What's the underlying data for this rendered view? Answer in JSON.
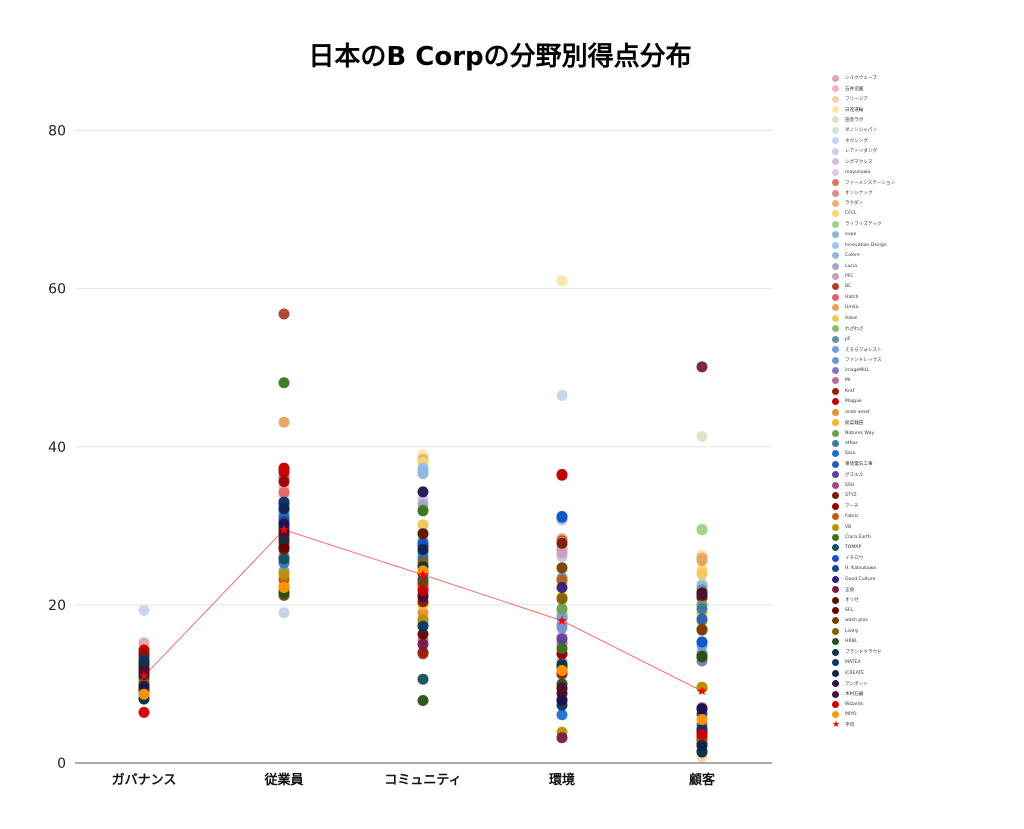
{
  "chart_data": {
    "type": "scatter",
    "title": "日本のB Corpの分野別得点分布",
    "xlabel": "",
    "ylabel": "",
    "categories": [
      "ガバナンス",
      "従業員",
      "コミュニティ",
      "環境",
      "顧客"
    ],
    "ylim": [
      0,
      85
    ],
    "yticks": [
      0,
      20,
      40,
      60,
      80
    ],
    "grid": true,
    "legend_position": "right",
    "series": [
      {
        "name": "シルクウェーブ",
        "color": "#e6a5a8",
        "values": [
          15.2,
          34.5,
          24.9,
          16.0,
          2.0
        ]
      },
      {
        "name": "石井造園",
        "color": "#f2b8b8",
        "values": [
          13.9,
          35.0,
          23.7,
          14.9,
          1.7
        ]
      },
      {
        "name": "フリージア",
        "color": "#f5d0a8",
        "values": [
          13.5,
          30.5,
          24.1,
          20.5,
          0.8
        ]
      },
      {
        "name": "日進運輸",
        "color": "#f9e6a6",
        "values": [
          12.0,
          28.7,
          39.0,
          61.0,
          26.3
        ]
      },
      {
        "name": "田舎ラボ",
        "color": "#d8e6c6",
        "values": [
          10.9,
          27.2,
          23.7,
          19.0,
          41.3
        ]
      },
      {
        "name": "ダノンジャパン",
        "color": "#c9e4d8",
        "values": [
          11.6,
          26.2,
          26.2,
          18.6,
          29.6
        ]
      },
      {
        "name": "ネクシング",
        "color": "#c6d4ee",
        "values": [
          19.3,
          30.8,
          37.1,
          46.5,
          22.7
        ]
      },
      {
        "name": "レアトリダング",
        "color": "#c6d2ea",
        "values": [
          9.8,
          19.0,
          17.6,
          30.7,
          14.3
        ]
      },
      {
        "name": "シグマクシス",
        "color": "#cdbfe0",
        "values": [
          10.9,
          36.3,
          33.3,
          26.1,
          13.6
        ]
      },
      {
        "name": "mayunowa",
        "color": "#e6c7e3",
        "values": [
          11.2,
          33.6,
          26.8,
          18.8,
          3.1
        ]
      },
      {
        "name": "ファーメンステーション",
        "color": "#d77a5e",
        "values": [
          13.9,
          21.6,
          22.4,
          20.8,
          25.9
        ]
      },
      {
        "name": "オンシナック",
        "color": "#e08c8c",
        "values": [
          14.0,
          23.3,
          21.9,
          12.8,
          21.8
        ]
      },
      {
        "name": "ラクダン",
        "color": "#efac74",
        "values": [
          12.9,
          29.6,
          38.4,
          28.4,
          25.9
        ]
      },
      {
        "name": "CFCL",
        "color": "#f6d770",
        "values": [
          12.4,
          28.9,
          38.0,
          24.5,
          24.4
        ]
      },
      {
        "name": "ライフイズテック",
        "color": "#a4cf8a",
        "values": [
          10.4,
          27.6,
          27.5,
          18.9,
          29.5
        ]
      },
      {
        "name": "evpe",
        "color": "#8fb8d8",
        "values": [
          9.5,
          30.1,
          36.6,
          30.9,
          22.4
        ]
      },
      {
        "name": "Innovation Design",
        "color": "#9ec2e8",
        "values": [
          8.9,
          31.3,
          37.3,
          28.1,
          21.7
        ]
      },
      {
        "name": "Colere",
        "color": "#8fb7e3",
        "values": [
          8.6,
          25.5,
          37.0,
          27.5,
          21.0
        ]
      },
      {
        "name": "Lucia",
        "color": "#a6a4cf",
        "values": [
          9.0,
          31.6,
          32.7,
          27.0,
          13.8
        ]
      },
      {
        "name": "PFC",
        "color": "#cf9ebd",
        "values": [
          9.4,
          36.2,
          29.1,
          26.6,
          3.4
        ]
      },
      {
        "name": "BC",
        "color": "#b0402a",
        "values": [
          13.4,
          56.8,
          13.8,
          28.1,
          16.8
        ]
      },
      {
        "name": "Hatch",
        "color": "#e06666",
        "values": [
          14.0,
          34.2,
          22.0,
          17.5,
          21.5
        ]
      },
      {
        "name": "Umila",
        "color": "#e7a45c",
        "values": [
          13.1,
          43.1,
          30.1,
          27.9,
          25.6
        ]
      },
      {
        "name": "Aakei",
        "color": "#f1c75a",
        "values": [
          11.6,
          32.2,
          30.1,
          23.1,
          23.9
        ]
      },
      {
        "name": "わざわざ",
        "color": "#8cbc6e",
        "values": [
          11.0,
          30.0,
          28.2,
          18.5,
          21.0
        ]
      },
      {
        "name": "pF",
        "color": "#5f91a6",
        "values": [
          10.0,
          26.1,
          25.0,
          23.4,
          21.9
        ]
      },
      {
        "name": "えそらフォレスト",
        "color": "#6f9fdc",
        "values": [
          9.7,
          24.3,
          18.2,
          18.3,
          14.9
        ]
      },
      {
        "name": "ファンドレックス",
        "color": "#6f95d3",
        "values": [
          9.3,
          31.4,
          17.6,
          17.1,
          13.8
        ]
      },
      {
        "name": "imageMILL",
        "color": "#8378bd",
        "values": [
          8.1,
          33.0,
          17.4,
          13.8,
          12.9
        ]
      },
      {
        "name": "Mr",
        "color": "#bd6f9b",
        "values": [
          12.5,
          36.1,
          15.5,
          15.2,
          7.0
        ]
      },
      {
        "name": "Kraf",
        "color": "#991f0c",
        "values": [
          13.8,
          37.2,
          14.0,
          36.5,
          20.9
        ]
      },
      {
        "name": "Magpie",
        "color": "#c00000",
        "values": [
          14.3,
          36.8,
          24.0,
          36.4,
          4.0
        ]
      },
      {
        "name": "ando amet",
        "color": "#e8902e",
        "values": [
          13.0,
          22.0,
          19.0,
          12.0,
          18.0
        ]
      },
      {
        "name": "総菜麺田",
        "color": "#f3b82a",
        "values": [
          11.0,
          22.6,
          20.0,
          21.0,
          19.0
        ]
      },
      {
        "name": "Natures Way",
        "color": "#6a9e52",
        "values": [
          10.6,
          21.5,
          32.0,
          19.5,
          20.0
        ]
      },
      {
        "name": "ethos",
        "color": "#3a79a4",
        "values": [
          10.1,
          25.3,
          26.6,
          11.2,
          19.5
        ]
      },
      {
        "name": "Saru",
        "color": "#1f6fd0",
        "values": [
          9.2,
          32.0,
          25.9,
          6.1,
          15.3
        ]
      },
      {
        "name": "東境電気工事",
        "color": "#2a5cb2",
        "values": [
          8.2,
          31.0,
          22.6,
          31.2,
          18.2
        ]
      },
      {
        "name": "グスエル",
        "color": "#5b3e9e",
        "values": [
          9.0,
          29.5,
          21.8,
          15.7,
          13.4
        ]
      },
      {
        "name": "SSU",
        "color": "#a04a7d",
        "values": [
          12.4,
          29.0,
          21.2,
          14.4,
          4.8
        ]
      },
      {
        "name": "STYZ",
        "color": "#7a1a0a",
        "values": [
          13.6,
          27.0,
          20.4,
          27.8,
          3.9
        ]
      },
      {
        "name": "アーチ",
        "color": "#990000",
        "values": [
          12.0,
          35.6,
          27.5,
          13.8,
          3.2
        ]
      },
      {
        "name": "Fabric",
        "color": "#b85f15",
        "values": [
          11.2,
          23.2,
          22.3,
          23.1,
          9.5
        ]
      },
      {
        "name": "VB",
        "color": "#bf9000",
        "values": [
          10.3,
          23.9,
          18.1,
          3.9,
          9.6
        ]
      },
      {
        "name": "Clara Earth",
        "color": "#38761d",
        "values": [
          10.0,
          48.1,
          31.9,
          14.5,
          13.4
        ]
      },
      {
        "name": "TOMAP",
        "color": "#134f5c",
        "values": [
          9.2,
          25.8,
          10.6,
          12.0,
          1.4
        ]
      },
      {
        "name": "イチロウ",
        "color": "#1155cc",
        "values": [
          8.7,
          32.7,
          27.8,
          31.1,
          15.3
        ]
      },
      {
        "name": "H. Katsukawa",
        "color": "#1c4587",
        "values": [
          12.4,
          30.5,
          23.2,
          12.5,
          6.2
        ]
      },
      {
        "name": "Good Culture",
        "color": "#351c75",
        "values": [
          11.8,
          29.7,
          21.2,
          22.2,
          6.9
        ]
      },
      {
        "name": "正食",
        "color": "#741b47",
        "values": [
          13.0,
          28.9,
          15.0,
          3.2,
          50.1
        ]
      },
      {
        "name": "オリゼ",
        "color": "#5b0f00",
        "values": [
          12.6,
          28.0,
          29.0,
          9.4,
          2.4
        ]
      },
      {
        "name": "SFL",
        "color": "#660000",
        "values": [
          11.8,
          27.3,
          16.3,
          8.8,
          21.5
        ]
      },
      {
        "name": "wash plus",
        "color": "#783f04",
        "values": [
          10.9,
          21.2,
          22.9,
          24.7,
          16.9
        ]
      },
      {
        "name": "Lively",
        "color": "#7f6000",
        "values": [
          10.0,
          22.2,
          25.4,
          20.8,
          2.9
        ]
      },
      {
        "name": "HRBL",
        "color": "#274e13",
        "values": [
          9.2,
          21.5,
          7.9,
          10.0,
          13.5
        ]
      },
      {
        "name": "ブランドクラウド",
        "color": "#0c343d",
        "values": [
          8.1,
          28.4,
          24.8,
          12.3,
          1.4
        ]
      },
      {
        "name": "MATEX",
        "color": "#073763",
        "values": [
          12.9,
          33.0,
          17.3,
          7.3,
          4.3
        ]
      },
      {
        "name": "iCREATE",
        "color": "#0b2550",
        "values": [
          11.2,
          32.2,
          27.0,
          8.0,
          2.2
        ]
      },
      {
        "name": "アシポット",
        "color": "#20124d",
        "values": [
          9.7,
          30.2,
          34.3,
          7.9,
          6.8
        ]
      },
      {
        "name": "木村石鹸",
        "color": "#4c1130",
        "values": [
          11.4,
          29.1,
          21.0,
          9.5,
          21.2
        ]
      },
      {
        "name": "Wizards",
        "color": "#cc0000",
        "values": [
          6.4,
          37.3,
          21.8,
          11.4,
          3.6
        ]
      },
      {
        "name": "MIYO",
        "color": "#ff9900",
        "values": [
          8.7,
          22.2,
          24.3,
          11.7,
          5.5
        ]
      }
    ],
    "average": {
      "name": "平均",
      "color": "#ff0000",
      "values": [
        11.0,
        29.5,
        23.8,
        18.0,
        9.1
      ]
    }
  }
}
